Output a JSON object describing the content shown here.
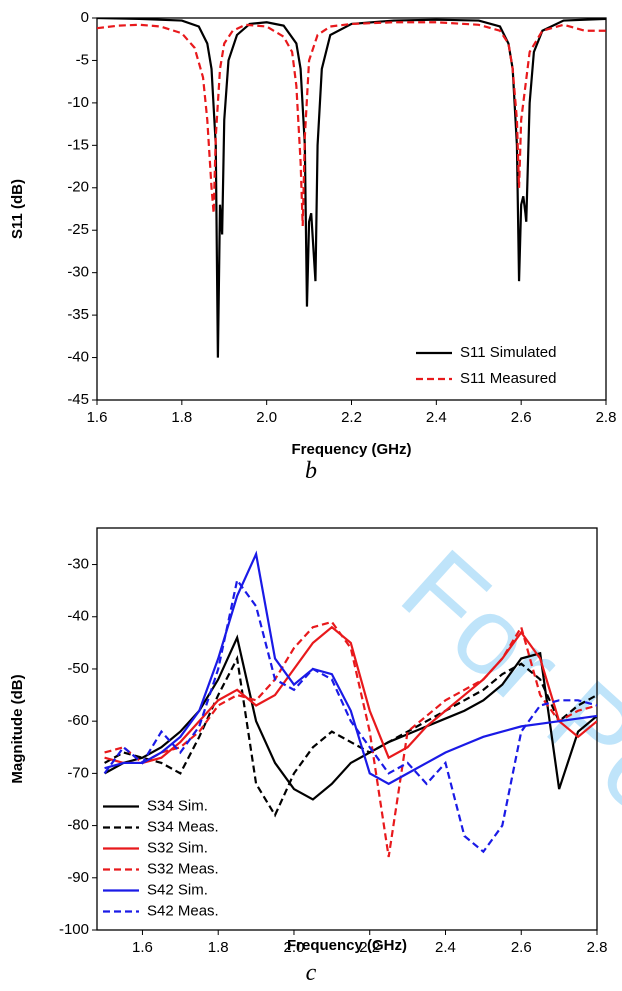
{
  "chart_data": [
    {
      "type": "line",
      "caption": "b",
      "ylabel": "S11 (dB)",
      "xlabel": "Frequency (GHz)",
      "xlim": [
        1.6,
        2.8
      ],
      "ylim": [
        -45,
        0
      ],
      "xticks": [
        1.6,
        1.8,
        {
          "value": 2,
          "label": "2.0"
        },
        2.2,
        2.4,
        2.6,
        2.8
      ],
      "yticks": [
        0,
        -5,
        -10,
        -15,
        -20,
        -25,
        -30,
        -35,
        -40,
        -45
      ],
      "legend": "lower right",
      "series": [
        {
          "name": "S11 Simulated",
          "color": "#000000",
          "dash": false,
          "x": [
            1.6,
            1.7,
            1.8,
            1.84,
            1.86,
            1.87,
            1.88,
            1.885,
            1.89,
            1.895,
            1.9,
            1.91,
            1.93,
            1.96,
            2.0,
            2.04,
            2.07,
            2.08,
            2.09,
            2.095,
            2.1,
            2.105,
            2.11,
            2.115,
            2.12,
            2.13,
            2.15,
            2.2,
            2.3,
            2.4,
            2.5,
            2.55,
            2.57,
            2.58,
            2.59,
            2.595,
            2.6,
            2.605,
            2.61,
            2.612,
            2.62,
            2.63,
            2.65,
            2.7,
            2.8
          ],
          "values": [
            0,
            -0.1,
            -0.3,
            -1,
            -3,
            -6,
            -15,
            -40,
            -22,
            -25.5,
            -12,
            -5,
            -2,
            -0.7,
            -0.5,
            -0.9,
            -3,
            -6,
            -15,
            -34,
            -24,
            -23,
            -27,
            -31,
            -15,
            -6,
            -2,
            -0.7,
            -0.3,
            -0.2,
            -0.3,
            -1,
            -3,
            -6,
            -15,
            -31,
            -22,
            -21,
            -23,
            -24,
            -10,
            -4,
            -1.5,
            -0.3,
            -0.1
          ]
        },
        {
          "name": "S11 Measured",
          "color": "#e8191c",
          "dash": true,
          "x": [
            1.6,
            1.65,
            1.7,
            1.75,
            1.8,
            1.83,
            1.85,
            1.86,
            1.87,
            1.875,
            1.88,
            1.89,
            1.9,
            1.92,
            1.95,
            2.0,
            2.04,
            2.06,
            2.07,
            2.08,
            2.085,
            2.09,
            2.1,
            2.12,
            2.15,
            2.2,
            2.3,
            2.4,
            2.5,
            2.55,
            2.57,
            2.58,
            2.59,
            2.595,
            2.6,
            2.62,
            2.65,
            2.7,
            2.75,
            2.8
          ],
          "values": [
            -1.2,
            -0.9,
            -0.8,
            -1,
            -1.8,
            -3.5,
            -7,
            -12,
            -20,
            -23,
            -14,
            -6,
            -3,
            -1.5,
            -0.8,
            -1,
            -2.2,
            -4,
            -8,
            -17,
            -24.5,
            -14,
            -5,
            -2,
            -1,
            -0.7,
            -0.5,
            -0.5,
            -0.8,
            -1.5,
            -3,
            -6,
            -12,
            -20,
            -12,
            -4,
            -1.5,
            -0.8,
            -1.5,
            -1.5
          ]
        }
      ]
    },
    {
      "type": "line",
      "caption": "c",
      "ylabel": "Magnitude (dB)",
      "xlabel": "Frequency (GHz)",
      "xlim": [
        1.48,
        2.8
      ],
      "ylim": [
        -100,
        -23
      ],
      "xticks": [
        1.6,
        1.8,
        {
          "value": 2,
          "label": "2.0"
        },
        2.2,
        2.4,
        2.6,
        2.8
      ],
      "yticks": [
        -30,
        -40,
        -50,
        -60,
        -70,
        -80,
        -90,
        -100
      ],
      "legend": "lower left",
      "x": [
        1.5,
        1.55,
        1.6,
        1.65,
        1.7,
        1.75,
        1.8,
        1.85,
        1.9,
        1.95,
        2.0,
        2.05,
        2.1,
        2.15,
        2.2,
        2.25,
        2.3,
        2.35,
        2.4,
        2.45,
        2.5,
        2.55,
        2.6,
        2.65,
        2.7,
        2.75,
        2.8
      ],
      "series": [
        {
          "name": "S34 Sim.",
          "color": "#000000",
          "dash": false,
          "values": [
            -70,
            -68,
            -67,
            -65,
            -62,
            -58,
            -52,
            -44,
            -60,
            -68,
            -73,
            -75,
            -72,
            -68,
            -66,
            -64,
            -62.5,
            -61,
            -59.5,
            -58,
            -56,
            -53,
            -48,
            -47,
            -73,
            -62,
            -59
          ]
        },
        {
          "name": "S34 Meas.",
          "color": "#000000",
          "dash": true,
          "values": [
            -68,
            -66,
            -67,
            -68,
            -70,
            -63,
            -55,
            -48,
            -72,
            -78,
            -70,
            -65,
            -62,
            -64,
            -66,
            -64,
            -62,
            -60,
            -58,
            -56,
            -54,
            -51,
            -49,
            -52,
            -60,
            -57,
            -55
          ]
        },
        {
          "name": "S32 Sim.",
          "color": "#e8191c",
          "dash": false,
          "values": [
            -67,
            -68,
            -68,
            -67,
            -64,
            -60,
            -56,
            -54,
            -57,
            -55,
            -50,
            -45,
            -42,
            -45,
            -58,
            -67,
            -65,
            -61,
            -58,
            -55,
            -52,
            -48,
            -43,
            -48,
            -60,
            -63,
            -60
          ]
        },
        {
          "name": "S32 Meas.",
          "color": "#e8191c",
          "dash": true,
          "values": [
            -66,
            -65,
            -68,
            -66,
            -65,
            -62,
            -57,
            -55,
            -56,
            -52,
            -46,
            -42,
            -41,
            -46,
            -62,
            -86,
            -62,
            -59,
            -56,
            -54,
            -52,
            -48,
            -42,
            -55,
            -60,
            -58,
            -57
          ]
        },
        {
          "name": "S42 Sim.",
          "color": "#1a1ae6",
          "dash": false,
          "values": [
            -69,
            -68,
            -68,
            -66,
            -63,
            -58,
            -48,
            -36,
            -28,
            -48,
            -53,
            -50,
            -51,
            -58,
            -70,
            -72,
            -70,
            -68,
            -66,
            -64.5,
            -63,
            -62,
            -61,
            -60.5,
            -60,
            -59.5,
            -59
          ]
        },
        {
          "name": "S42 Meas.",
          "color": "#1a1ae6",
          "dash": true,
          "values": [
            -70,
            -65,
            -68,
            -62,
            -66,
            -61,
            -50,
            -33,
            -38,
            -52,
            -54,
            -50,
            -52,
            -60,
            -65,
            -70,
            -68,
            -72,
            -68,
            -82,
            -85,
            -80,
            -62,
            -57,
            -56,
            -56,
            -57
          ]
        }
      ]
    }
  ],
  "watermark": "For Pe"
}
